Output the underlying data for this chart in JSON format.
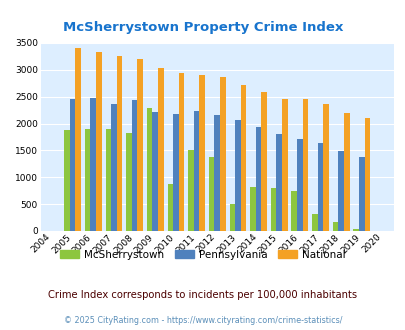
{
  "title": "McSherrystown Property Crime Index",
  "years": [
    2004,
    2005,
    2006,
    2007,
    2008,
    2009,
    2010,
    2011,
    2012,
    2013,
    2014,
    2015,
    2016,
    2017,
    2018,
    2019,
    2020
  ],
  "mcsherrystown": [
    0,
    1880,
    1900,
    1890,
    1820,
    2280,
    880,
    1500,
    1380,
    500,
    820,
    800,
    750,
    310,
    160,
    30,
    0
  ],
  "pennsylvania": [
    0,
    2460,
    2470,
    2370,
    2440,
    2220,
    2180,
    2230,
    2160,
    2070,
    1940,
    1800,
    1720,
    1640,
    1490,
    1380,
    0
  ],
  "national": [
    0,
    3410,
    3330,
    3250,
    3200,
    3040,
    2940,
    2900,
    2860,
    2720,
    2590,
    2460,
    2460,
    2360,
    2200,
    2100,
    0
  ],
  "color_mcsherrystown": "#8dc63f",
  "color_pennsylvania": "#4f81bd",
  "color_national": "#f4a124",
  "color_title": "#1874CD",
  "color_background": "#ddeeff",
  "color_subtitle": "#4b0000",
  "color_copyright": "#5b8fb9",
  "ylim": [
    0,
    3500
  ],
  "yticks": [
    0,
    500,
    1000,
    1500,
    2000,
    2500,
    3000,
    3500
  ],
  "subtitle": "Crime Index corresponds to incidents per 100,000 inhabitants",
  "copyright": "© 2025 CityRating.com - https://www.cityrating.com/crime-statistics/"
}
